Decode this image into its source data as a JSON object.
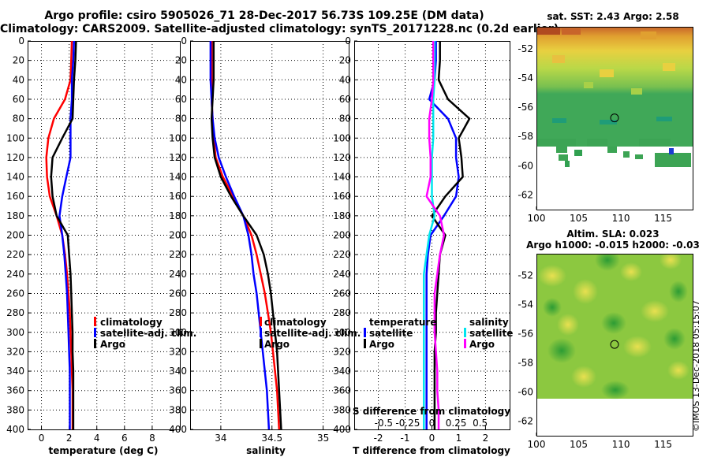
{
  "title": {
    "line1": "Argo profile: csiro 5905026_71 28-Dec-2017 56.73S 109.25E (DM data)",
    "line2": "Climatology: CARS2009. Satellite-adjusted climatology: synTS_20171228.nc (0.2d earlier)"
  },
  "credit": "©IMOS 13-Dec-2018 05:15:07",
  "colors": {
    "climatology": "#ff0000",
    "satellite": "#0000ff",
    "argo": "#000000",
    "sal_satellite": "#00e5ee",
    "sal_argo": "#ff00ff"
  },
  "chart_data": [
    {
      "type": "line",
      "title": "",
      "xlabel": "temperature (deg C)",
      "ylabel": "",
      "xlim": [
        -1,
        10
      ],
      "ylim": [
        400,
        0
      ],
      "xticks": [
        0,
        2,
        4,
        6,
        8
      ],
      "yticks": [
        0,
        20,
        40,
        60,
        80,
        100,
        120,
        140,
        160,
        180,
        200,
        220,
        240,
        260,
        280,
        300,
        320,
        340,
        360,
        380,
        400
      ],
      "legend": [
        "climatology",
        "satellite-adj. clim.",
        "Argo"
      ],
      "series": [
        {
          "name": "climatology",
          "color": "#ff0000",
          "x": [
            2.2,
            2.15,
            2.1,
            1.7,
            0.9,
            0.5,
            0.35,
            0.4,
            0.6,
            1.1,
            1.5,
            1.7,
            1.85,
            1.95,
            2.05,
            2.1,
            2.15,
            2.2,
            2.25,
            2.25,
            2.25
          ],
          "y": [
            0,
            20,
            40,
            60,
            80,
            100,
            120,
            140,
            160,
            180,
            200,
            220,
            240,
            260,
            280,
            300,
            320,
            340,
            360,
            380,
            400
          ]
        },
        {
          "name": "satellite-adj. clim.",
          "color": "#0000ff",
          "x": [
            2.35,
            2.3,
            2.2,
            2.2,
            2.1,
            2.1,
            2.1,
            1.8,
            1.5,
            1.3,
            1.5,
            1.65,
            1.75,
            1.85,
            1.9,
            1.95,
            2.0,
            2.05,
            2.05,
            2.05,
            2.05
          ],
          "y": [
            0,
            20,
            40,
            60,
            80,
            100,
            120,
            140,
            160,
            180,
            200,
            220,
            240,
            260,
            280,
            300,
            320,
            340,
            360,
            380,
            400
          ]
        },
        {
          "name": "Argo",
          "color": "#000000",
          "x": [
            2.5,
            2.45,
            2.35,
            2.3,
            2.25,
            1.5,
            0.8,
            0.7,
            0.8,
            1.1,
            1.9,
            2.0,
            2.1,
            2.15,
            2.2,
            2.25,
            2.25,
            2.3,
            2.3,
            2.3,
            2.3
          ],
          "y": [
            0,
            20,
            40,
            60,
            80,
            100,
            120,
            140,
            160,
            180,
            200,
            220,
            240,
            260,
            280,
            300,
            320,
            340,
            360,
            380,
            400
          ]
        }
      ]
    },
    {
      "type": "line",
      "title": "",
      "xlabel": "salinity",
      "ylabel": "",
      "xlim": [
        33.7,
        35.25
      ],
      "ylim": [
        400,
        0
      ],
      "xticks": [
        34,
        34.5,
        35
      ],
      "tick_labels": [
        "34",
        "34.5",
        "35"
      ],
      "legend": [
        "climatology",
        "satellite-adj. clim.",
        "Argo"
      ],
      "series": [
        {
          "name": "climatology",
          "color": "#ff0000",
          "x": [
            33.91,
            33.91,
            33.91,
            33.91,
            33.92,
            33.93,
            33.95,
            34.02,
            34.12,
            34.22,
            34.3,
            34.35,
            34.39,
            34.43,
            34.46,
            34.49,
            34.51,
            34.53,
            34.55,
            34.56,
            34.57
          ],
          "y": [
            0,
            20,
            40,
            60,
            80,
            100,
            120,
            140,
            160,
            180,
            200,
            220,
            240,
            260,
            280,
            300,
            320,
            340,
            360,
            380,
            400
          ]
        },
        {
          "name": "satellite-adj. clim.",
          "color": "#0000ff",
          "x": [
            33.9,
            33.9,
            33.9,
            33.91,
            33.92,
            33.94,
            33.98,
            34.05,
            34.13,
            34.22,
            34.27,
            34.3,
            34.32,
            34.35,
            34.37,
            34.39,
            34.41,
            34.43,
            34.45,
            34.46,
            34.47
          ],
          "y": [
            0,
            20,
            40,
            60,
            80,
            100,
            120,
            140,
            160,
            180,
            200,
            220,
            240,
            260,
            280,
            300,
            320,
            340,
            360,
            380,
            400
          ]
        },
        {
          "name": "Argo",
          "color": "#000000",
          "x": [
            33.93,
            33.93,
            33.93,
            33.92,
            33.91,
            33.92,
            33.94,
            34.0,
            34.1,
            34.22,
            34.35,
            34.42,
            34.46,
            34.49,
            34.51,
            34.53,
            34.55,
            34.56,
            34.57,
            34.58,
            34.59
          ],
          "y": [
            0,
            20,
            40,
            60,
            80,
            100,
            120,
            140,
            160,
            180,
            200,
            220,
            240,
            260,
            280,
            300,
            320,
            340,
            360,
            380,
            400
          ]
        }
      ]
    },
    {
      "type": "line",
      "title": "",
      "xlabel": "T difference from climatology",
      "ylabel": "",
      "xlim": [
        -2.9,
        2.9
      ],
      "ylim": [
        400,
        0
      ],
      "xticks": [
        -2,
        -1,
        0,
        1,
        2
      ],
      "secondary_xlabel": "S difference from climatology",
      "secondary_tick_labels": [
        "-0.5",
        "-0.25",
        "0",
        "0.25",
        "0.5"
      ],
      "secondary_ticks_in_T_units": [
        -1.8,
        -0.9,
        0,
        0.9,
        1.8
      ],
      "legend_temperature": [
        "temperature",
        "satellite",
        "Argo"
      ],
      "legend_salinity": [
        "salinity",
        "satellite",
        "Argo"
      ],
      "series": [
        {
          "name": "temperature satellite",
          "color": "#0000ff",
          "x": [
            0.15,
            0.15,
            0.1,
            -0.1,
            0.6,
            0.9,
            0.9,
            1.0,
            0.9,
            0.45,
            -0.05,
            -0.15,
            -0.2,
            -0.2,
            -0.2,
            -0.2,
            -0.2,
            -0.2,
            -0.2,
            -0.2,
            -0.2
          ],
          "y": [
            0,
            20,
            40,
            60,
            80,
            100,
            120,
            140,
            160,
            180,
            200,
            220,
            240,
            260,
            280,
            300,
            320,
            340,
            360,
            380,
            400
          ]
        },
        {
          "name": "temperature Argo",
          "color": "#000000",
          "x": [
            0.3,
            0.3,
            0.25,
            0.6,
            1.4,
            1.0,
            1.1,
            1.15,
            0.5,
            0.0,
            0.5,
            0.3,
            0.25,
            0.2,
            0.15,
            0.15,
            0.1,
            0.1,
            0.1,
            0.1,
            0.1
          ],
          "y": [
            0,
            20,
            40,
            60,
            80,
            100,
            120,
            140,
            160,
            180,
            200,
            220,
            240,
            260,
            280,
            300,
            320,
            340,
            360,
            380,
            400
          ]
        },
        {
          "name": "salinity satellite",
          "color": "#00e5ee",
          "x": [
            0.1,
            0.1,
            0.1,
            0.05,
            0.05,
            0.05,
            0.0,
            0.0,
            0.0,
            0.1,
            -0.1,
            -0.2,
            -0.3,
            -0.3,
            -0.3,
            -0.3,
            -0.3,
            -0.3,
            -0.3,
            -0.3,
            -0.3
          ],
          "y": [
            0,
            20,
            40,
            60,
            80,
            100,
            120,
            140,
            160,
            180,
            200,
            220,
            240,
            260,
            280,
            300,
            320,
            340,
            360,
            380,
            400
          ]
        },
        {
          "name": "salinity Argo",
          "color": "#ff00ff",
          "x": [
            0.05,
            0.05,
            0.05,
            0.0,
            -0.1,
            -0.1,
            -0.05,
            -0.05,
            -0.2,
            0.3,
            0.45,
            0.3,
            0.2,
            0.1,
            0.1,
            0.1,
            0.15,
            0.2,
            0.2,
            0.25,
            0.25
          ],
          "y": [
            0,
            20,
            40,
            60,
            80,
            100,
            120,
            140,
            160,
            180,
            200,
            220,
            240,
            260,
            280,
            300,
            320,
            340,
            360,
            380,
            400
          ]
        }
      ]
    },
    {
      "type": "heatmap",
      "title": "sat. SST: 2.43 Argo: 2.58",
      "xlim": [
        100,
        118.5
      ],
      "ylim": [
        -63,
        -50.5
      ],
      "xticks": [
        100,
        105,
        110,
        115
      ],
      "yticks": [
        -52,
        -54,
        -56,
        -58,
        -60,
        -62
      ],
      "profile_location": {
        "lon": 109.25,
        "lat": -56.73
      }
    },
    {
      "type": "heatmap",
      "title_line1": "Altim. SLA: 0.023",
      "title_line2": "Argo h1000: -0.015 h2000: -0.03",
      "xlim": [
        100,
        118.5
      ],
      "ylim": [
        -63,
        -50.5
      ],
      "xticks": [
        100,
        105,
        110,
        115
      ],
      "yticks": [
        -52,
        -54,
        -56,
        -58,
        -60,
        -62
      ],
      "profile_location": {
        "lon": 109.25,
        "lat": -56.73
      }
    }
  ]
}
